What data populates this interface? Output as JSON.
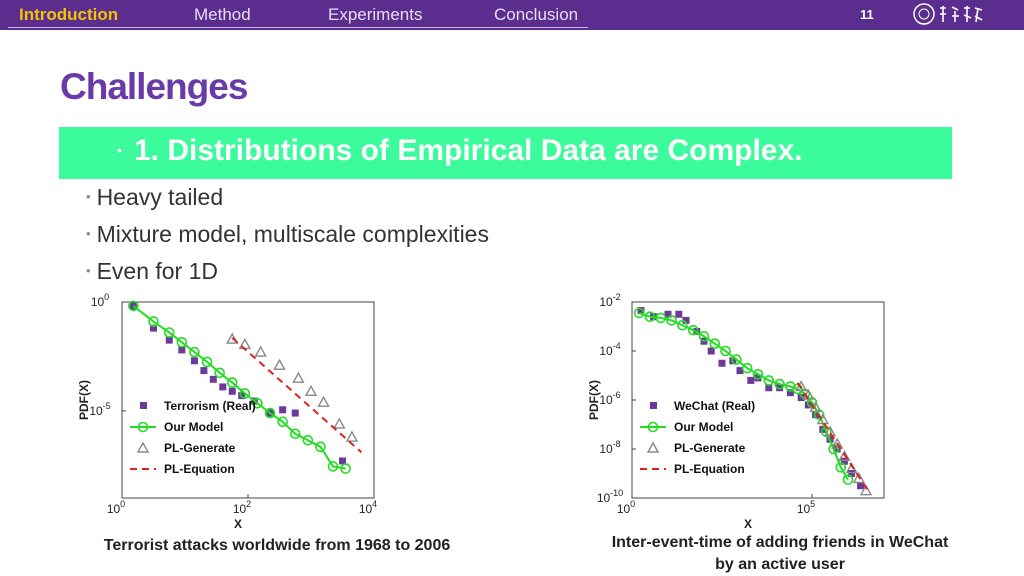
{
  "nav": {
    "items": [
      "Introduction",
      "Method",
      "Experiments",
      "Conclusion"
    ],
    "active": "Introduction",
    "page_number": "11"
  },
  "title": "Challenges",
  "banner": {
    "bullet": "•",
    "text": "1. Distributions of Empirical Data are Complex."
  },
  "bullets": [
    "Heavy tailed",
    "Mixture model, multiscale complexities",
    "Even for 1D"
  ],
  "captions": {
    "left": "Terrorist attacks worldwide from 1968 to 2006",
    "right_line1": "Inter-event-time of adding friends in WeChat",
    "right_line2": "by an active user"
  },
  "colors": {
    "nav_bg": "#5b2d8e",
    "active_nav": "#f3c400",
    "title": "#6a3aa8",
    "banner": "#3cfb9c",
    "real_marker": "#6b3a9a",
    "model_line": "#22dd22",
    "pl_generate": "#888888",
    "pl_equation": "#dd2222"
  },
  "chart_data": [
    {
      "type": "scatter",
      "xscale": "log",
      "yscale": "log",
      "xlabel": "X",
      "ylabel": "PDF(X)",
      "xlim_exp": [
        0,
        4
      ],
      "ylim_exp": [
        -9,
        0
      ],
      "x_ticks": [
        {
          "base": "10",
          "exp": "0",
          "v": 0
        },
        {
          "base": "10",
          "exp": "2",
          "v": 2
        },
        {
          "base": "10",
          "exp": "4",
          "v": 4
        }
      ],
      "y_ticks": [
        {
          "base": "10",
          "exp": "0",
          "v": 0
        },
        {
          "base": "10",
          "exp": "-5",
          "v": -5
        }
      ],
      "legend": [
        "Terrorism (Real)",
        "Our Model",
        "PL-Generate",
        "PL-Equation"
      ],
      "legend_placement": "bottom-left",
      "series": [
        {
          "name": "Terrorism (Real)",
          "style": "square",
          "points": [
            [
              0.18,
              -0.18
            ],
            [
              0.5,
              -1.2
            ],
            [
              0.75,
              -1.75
            ],
            [
              0.95,
              -2.2
            ],
            [
              1.15,
              -2.7
            ],
            [
              1.3,
              -3.15
            ],
            [
              1.45,
              -3.55
            ],
            [
              1.6,
              -3.9
            ],
            [
              1.75,
              -4.1
            ],
            [
              1.9,
              -4.3
            ],
            [
              2.1,
              -4.55
            ],
            [
              2.35,
              -5.1
            ],
            [
              2.55,
              -4.95
            ],
            [
              2.75,
              -5.1
            ],
            [
              3.5,
              -7.3
            ]
          ]
        },
        {
          "name": "Our Model",
          "style": "circle-line",
          "points": [
            [
              0.18,
              -0.18
            ],
            [
              0.5,
              -0.9
            ],
            [
              0.75,
              -1.4
            ],
            [
              0.95,
              -1.85
            ],
            [
              1.15,
              -2.3
            ],
            [
              1.35,
              -2.75
            ],
            [
              1.55,
              -3.25
            ],
            [
              1.75,
              -3.7
            ],
            [
              1.95,
              -4.2
            ],
            [
              2.15,
              -4.65
            ],
            [
              2.35,
              -5.1
            ],
            [
              2.55,
              -5.5
            ],
            [
              2.75,
              -6.05
            ],
            [
              2.95,
              -6.35
            ],
            [
              3.15,
              -6.65
            ],
            [
              3.35,
              -7.55
            ],
            [
              3.55,
              -7.65
            ]
          ]
        },
        {
          "name": "PL-Generate",
          "style": "triangle",
          "points": [
            [
              1.75,
              -1.7
            ],
            [
              1.95,
              -1.95
            ],
            [
              2.2,
              -2.3
            ],
            [
              2.5,
              -2.9
            ],
            [
              2.8,
              -3.5
            ],
            [
              3.0,
              -4.1
            ],
            [
              3.2,
              -4.6
            ],
            [
              3.45,
              -5.6
            ],
            [
              3.65,
              -6.2
            ]
          ]
        },
        {
          "name": "PL-Equation",
          "style": "dashed",
          "points": [
            [
              1.75,
              -1.65
            ],
            [
              3.8,
              -6.9
            ]
          ]
        }
      ]
    },
    {
      "type": "scatter",
      "xscale": "log",
      "yscale": "log",
      "xlabel": "X",
      "ylabel": "PDF(X)",
      "xlim_exp": [
        0,
        7
      ],
      "ylim_exp": [
        -10,
        -2
      ],
      "x_ticks": [
        {
          "base": "10",
          "exp": "0",
          "v": 0
        },
        {
          "base": "10",
          "exp": "5",
          "v": 5
        }
      ],
      "y_ticks": [
        {
          "base": "10",
          "exp": "-2",
          "v": -2
        },
        {
          "base": "10",
          "exp": "-4",
          "v": -4
        },
        {
          "base": "10",
          "exp": "-6",
          "v": -6
        },
        {
          "base": "10",
          "exp": "-8",
          "v": -8
        },
        {
          "base": "10",
          "exp": "-10",
          "v": -10
        }
      ],
      "legend": [
        "WeChat (Real)",
        "Our Model",
        "PL-Generate",
        "PL-Equation"
      ],
      "legend_placement": "bottom-left",
      "series": [
        {
          "name": "WeChat (Real)",
          "style": "square",
          "points": [
            [
              0.25,
              -2.35
            ],
            [
              0.6,
              -2.6
            ],
            [
              1.0,
              -2.5
            ],
            [
              1.3,
              -2.5
            ],
            [
              1.5,
              -2.75
            ],
            [
              1.8,
              -3.2
            ],
            [
              2.0,
              -3.6
            ],
            [
              2.2,
              -4.0
            ],
            [
              2.5,
              -4.5
            ],
            [
              2.8,
              -4.4
            ],
            [
              3.0,
              -4.8
            ],
            [
              3.3,
              -5.2
            ],
            [
              3.5,
              -5.1
            ],
            [
              3.8,
              -5.5
            ],
            [
              4.1,
              -5.5
            ],
            [
              4.4,
              -5.7
            ],
            [
              4.7,
              -5.9
            ],
            [
              4.9,
              -6.2
            ],
            [
              5.1,
              -6.6
            ],
            [
              5.3,
              -7.2
            ],
            [
              5.5,
              -7.6
            ],
            [
              5.7,
              -8.0
            ],
            [
              5.9,
              -8.5
            ],
            [
              6.1,
              -9.0
            ],
            [
              6.35,
              -9.5
            ]
          ]
        },
        {
          "name": "Our Model",
          "style": "circle-line",
          "points": [
            [
              0.2,
              -2.45
            ],
            [
              0.5,
              -2.6
            ],
            [
              0.8,
              -2.65
            ],
            [
              1.1,
              -2.75
            ],
            [
              1.4,
              -2.95
            ],
            [
              1.7,
              -3.15
            ],
            [
              2.0,
              -3.4
            ],
            [
              2.3,
              -3.7
            ],
            [
              2.6,
              -4.0
            ],
            [
              2.9,
              -4.35
            ],
            [
              3.2,
              -4.7
            ],
            [
              3.5,
              -4.95
            ],
            [
              3.8,
              -5.2
            ],
            [
              4.1,
              -5.35
            ],
            [
              4.4,
              -5.45
            ],
            [
              4.6,
              -5.55
            ],
            [
              4.8,
              -5.75
            ],
            [
              5.0,
              -6.1
            ],
            [
              5.2,
              -6.6
            ],
            [
              5.4,
              -7.3
            ],
            [
              5.6,
              -8.0
            ],
            [
              5.8,
              -8.75
            ],
            [
              6.0,
              -9.25
            ]
          ]
        },
        {
          "name": "PL-Generate",
          "style": "triangle",
          "points": [
            [
              4.7,
              -5.45
            ],
            [
              4.9,
              -5.8
            ],
            [
              5.1,
              -6.3
            ],
            [
              5.3,
              -6.8
            ],
            [
              5.5,
              -7.3
            ],
            [
              5.7,
              -7.8
            ],
            [
              5.9,
              -8.3
            ],
            [
              6.1,
              -8.8
            ],
            [
              6.3,
              -9.2
            ],
            [
              6.5,
              -9.7
            ]
          ]
        },
        {
          "name": "PL-Equation",
          "style": "dashed",
          "points": [
            [
              4.6,
              -5.3
            ],
            [
              6.6,
              -9.8
            ]
          ]
        }
      ]
    }
  ]
}
